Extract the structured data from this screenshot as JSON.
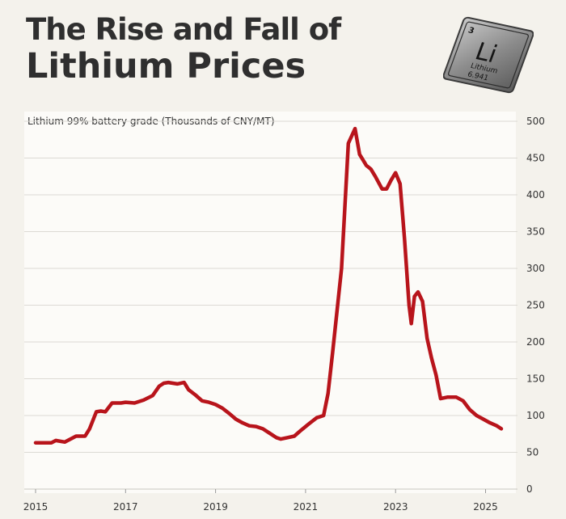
{
  "header": {
    "title_line1": "The Rise and Fall of",
    "title_line2": "Lithium Prices"
  },
  "element_tile": {
    "atomic_number": "3",
    "symbol": "Li",
    "name": "Lithium",
    "mass": "6.941"
  },
  "colors": {
    "line": "#b8141b",
    "background": "#f4f2ec",
    "plot_background": "#fcfbf8",
    "grid": "#dcdad4",
    "text": "#2f2f2f"
  },
  "chart_data": {
    "type": "line",
    "title": "The Rise and Fall of Lithium Prices",
    "ylabel": "Lithium 99% battery grade (Thousands of CNY/MT)",
    "xlabel": "",
    "xlim": [
      2015.0,
      2025.35
    ],
    "ylim": [
      0,
      500
    ],
    "x_ticks": [
      "2015",
      "2017",
      "2019",
      "2021",
      "2023",
      "2025"
    ],
    "x_tick_values": [
      2015,
      2017,
      2019,
      2021,
      2023,
      2025
    ],
    "y_ticks": [
      "0",
      "50",
      "100",
      "150",
      "200",
      "250",
      "300",
      "350",
      "400",
      "450",
      "500"
    ],
    "y_tick_values": [
      0,
      50,
      100,
      150,
      200,
      250,
      300,
      350,
      400,
      450,
      500
    ],
    "y_axis_position": "right",
    "grid": true,
    "series": [
      {
        "x": [
          2015.0,
          2015.35,
          2015.45,
          2015.65,
          2015.9,
          2016.1,
          2016.2,
          2016.35,
          2016.45,
          2016.55,
          2016.7,
          2016.9,
          2017.0,
          2017.2,
          2017.4,
          2017.6,
          2017.75,
          2017.85,
          2017.95,
          2018.05,
          2018.15,
          2018.3,
          2018.4,
          2018.55,
          2018.7,
          2018.85,
          2019.0,
          2019.15,
          2019.3,
          2019.45,
          2019.6,
          2019.75,
          2019.9,
          2020.05,
          2020.2,
          2020.35,
          2020.45,
          2020.6,
          2020.75,
          2020.9,
          2021.1,
          2021.25,
          2021.4,
          2021.5,
          2021.6,
          2021.8,
          2021.95,
          2022.1,
          2022.2,
          2022.3,
          2022.35,
          2022.45,
          2022.55,
          2022.7,
          2022.8,
          2022.9,
          2023.0,
          2023.1,
          2023.2,
          2023.3,
          2023.35,
          2023.42,
          2023.5,
          2023.6,
          2023.7,
          2023.8,
          2023.9,
          2024.0,
          2024.15,
          2024.35,
          2024.5,
          2024.65,
          2024.8,
          2024.95,
          2025.1,
          2025.25,
          2025.35
        ],
        "y": [
          63,
          63,
          66,
          64,
          72,
          72,
          82,
          105,
          106,
          105,
          117,
          117,
          118,
          117,
          121,
          127,
          140,
          144,
          145,
          144,
          143,
          145,
          135,
          128,
          120,
          118,
          115,
          110,
          103,
          95,
          90,
          86,
          85,
          82,
          76,
          70,
          68,
          70,
          72,
          80,
          90,
          97,
          100,
          130,
          185,
          300,
          470,
          490,
          455,
          445,
          440,
          435,
          425,
          408,
          408,
          420,
          430,
          415,
          340,
          250,
          225,
          262,
          268,
          255,
          205,
          178,
          155,
          123,
          125,
          125,
          120,
          108,
          100,
          95,
          90,
          86,
          82
        ]
      }
    ]
  }
}
